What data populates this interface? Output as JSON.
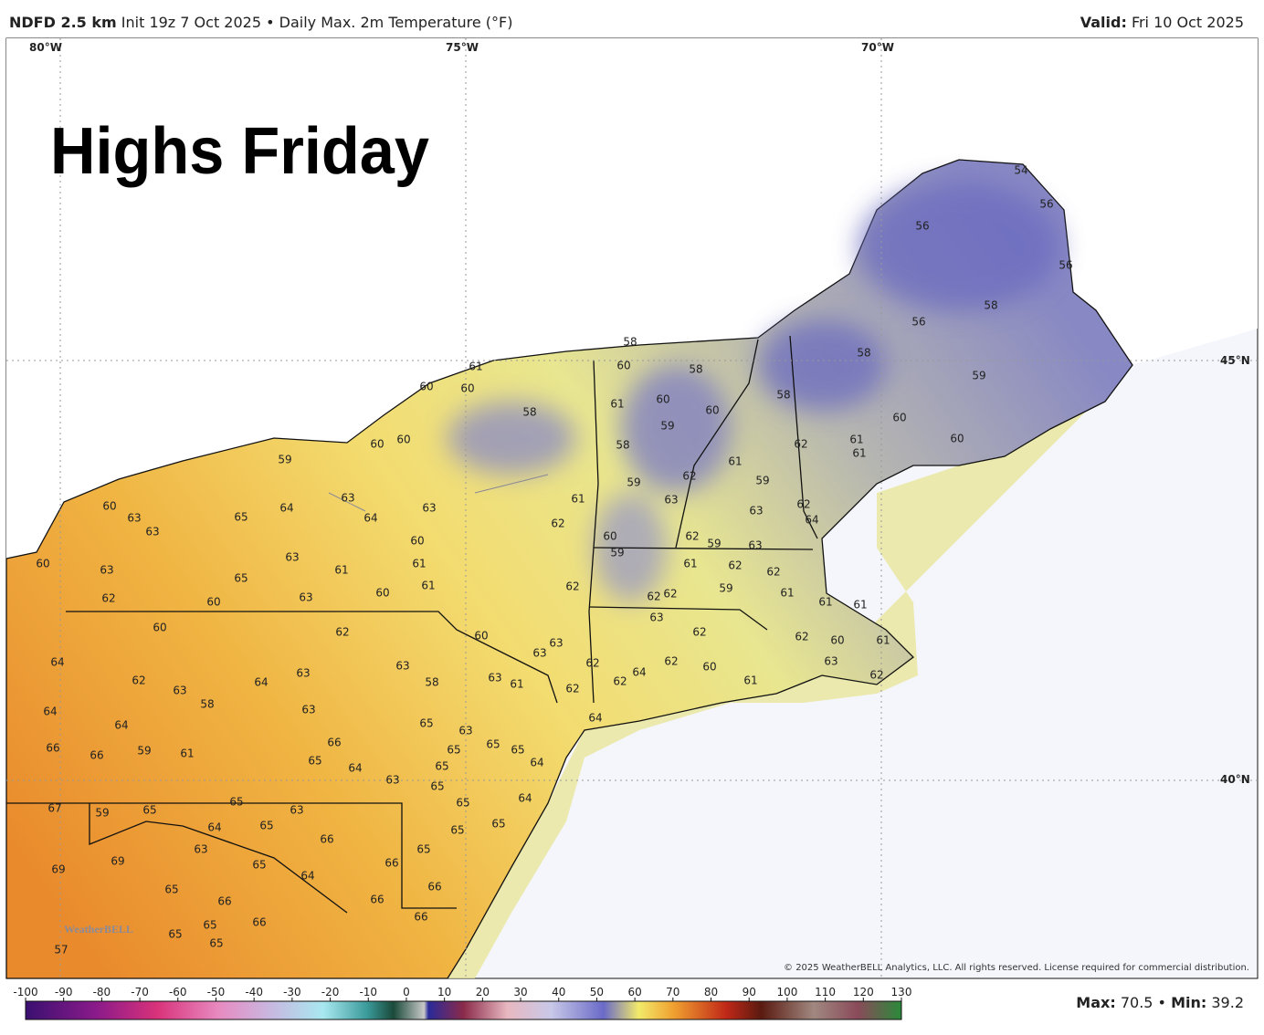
{
  "header": {
    "model": "NDFD 2.5 km",
    "init": "Init 19z 7 Oct 2025",
    "separator": "•",
    "product": "Daily Max. 2m Temperature (°F)",
    "valid_label": "Valid:",
    "valid_value": "Fri 10 Oct 2025"
  },
  "overlay_title": "Highs Friday",
  "graticule": {
    "lon": [
      "80°W",
      "75°W",
      "70°W"
    ],
    "lat": [
      "45°N",
      "40°N"
    ]
  },
  "temperature_labels": [
    54,
    56,
    56,
    56,
    58,
    56,
    58,
    59,
    58,
    60,
    61,
    61,
    60,
    58,
    60,
    58,
    61,
    60,
    59,
    60,
    58,
    61,
    62,
    59,
    62,
    59,
    63,
    61,
    62,
    63,
    62,
    64,
    61,
    60,
    60,
    58,
    60,
    60,
    59,
    63,
    64,
    65,
    64,
    63,
    60,
    63,
    63,
    60,
    61,
    63,
    61,
    61,
    65,
    60,
    63,
    60,
    62,
    63,
    60,
    60,
    59,
    62,
    59,
    63,
    61,
    62,
    62,
    59,
    61,
    62,
    62,
    62,
    63,
    61,
    61,
    62,
    60,
    62,
    61,
    63,
    62,
    62,
    60,
    61,
    60,
    63,
    63,
    62,
    64,
    62,
    63,
    61,
    62,
    64,
    60,
    62,
    63,
    58,
    64,
    62,
    63,
    58,
    64,
    63,
    63,
    64,
    64,
    65,
    63,
    65,
    65,
    65,
    66,
    66,
    66,
    59,
    61,
    65,
    64,
    65,
    64,
    63,
    65,
    65,
    64,
    65,
    67,
    59,
    65,
    63,
    64,
    65,
    65,
    65,
    63,
    66,
    66,
    65,
    69,
    69,
    65,
    64,
    65,
    66,
    66,
    66,
    65,
    65,
    66,
    66,
    65,
    57
  ],
  "logo": "WeatherBELL",
  "copyright": "© 2025 WeatherBELL Analytics, LLC. All rights reserved. License required for commercial distribution.",
  "colorbar": {
    "ticks": [
      -100,
      -90,
      -80,
      -70,
      -60,
      -50,
      -40,
      -30,
      -20,
      -10,
      0,
      10,
      20,
      30,
      40,
      50,
      60,
      70,
      80,
      90,
      100,
      110,
      120,
      130
    ]
  },
  "stats": {
    "max_label": "Max:",
    "max": 70.5,
    "separator": "•",
    "min_label": "Min:",
    "min": 39.2
  }
}
